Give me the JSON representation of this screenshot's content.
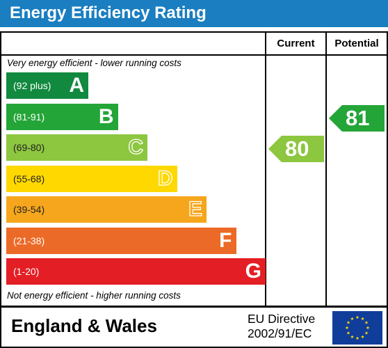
{
  "title": "Energy Efficiency Rating",
  "columns": {
    "current": "Current",
    "potential": "Potential"
  },
  "top_caption": "Very energy efficient - lower running costs",
  "bottom_caption": "Not energy efficient - higher running costs",
  "bands": [
    {
      "range": "(92 plus)",
      "letter": "A",
      "color": "#11893f"
    },
    {
      "range": "(81-91)",
      "letter": "B",
      "color": "#24a538"
    },
    {
      "range": "(69-80)",
      "letter": "C",
      "color": "#8dc63f"
    },
    {
      "range": "(55-68)",
      "letter": "D",
      "color": "#ffd800"
    },
    {
      "range": "(39-54)",
      "letter": "E",
      "color": "#f6a61c"
    },
    {
      "range": "(21-38)",
      "letter": "F",
      "color": "#ec6a27"
    },
    {
      "range": "(1-20)",
      "letter": "G",
      "color": "#e31e24"
    }
  ],
  "current": {
    "value": "80",
    "band": "C",
    "color": "#8dc63f"
  },
  "potential": {
    "value": "81",
    "band": "B",
    "color": "#24a538"
  },
  "footer": {
    "region": "England & Wales",
    "directive_line1": "EU Directive",
    "directive_line2": "2002/91/EC"
  },
  "icons": {
    "eu_flag": "eu-flag-icon"
  }
}
